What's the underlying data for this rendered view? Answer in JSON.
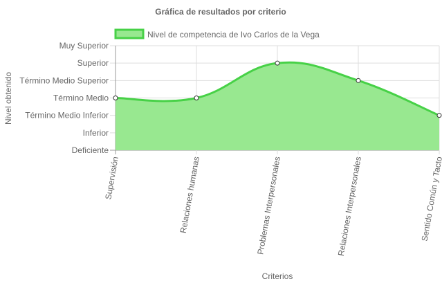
{
  "chart_data": {
    "type": "area",
    "title": "Gráfica de resultados por criterio",
    "xlabel": "Criterios",
    "ylabel": "Nivel obtenido",
    "categories": [
      "Supervisión",
      "Relaciones humanas",
      "Problemas Interpersonales",
      "Relaciones Interpersonales",
      "Sentido Común y Tacto"
    ],
    "y_levels": [
      "Deficiente",
      "Inferior",
      "Término Medio Inferior",
      "Término Medio",
      "Término Medio Superior",
      "Superior",
      "Muy Superior"
    ],
    "ylim": [
      0,
      6
    ],
    "series": [
      {
        "name": "Nivel de competencia de Ivo Carlos de la Vega",
        "values": [
          3,
          3,
          5,
          4,
          2
        ]
      }
    ],
    "legend_position": "top",
    "grid": true,
    "colors": {
      "fill": "#98e890",
      "line": "#47d147",
      "point_fill": "#ffffff",
      "point_stroke": "#333333",
      "grid": "#dddddd",
      "axis": "#999999"
    }
  }
}
